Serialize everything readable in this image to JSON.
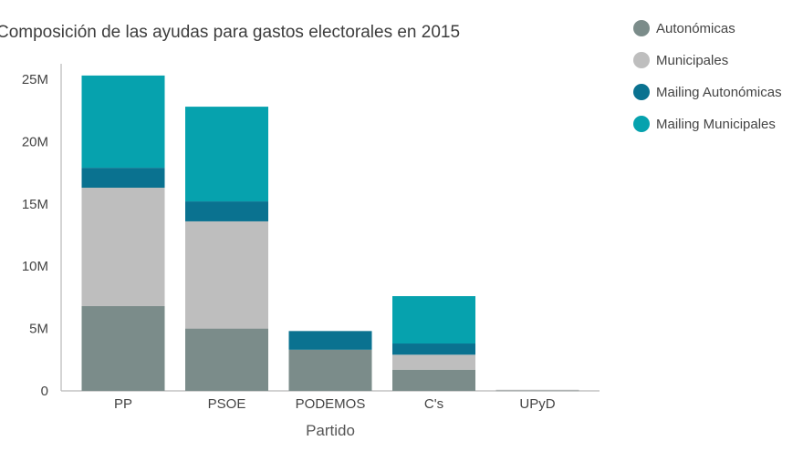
{
  "chart_data": {
    "type": "bar",
    "stacked": true,
    "title": "Composición de las ayudas para gastos electorales en 2015",
    "xlabel": "Partido",
    "ylabel": "",
    "categories": [
      "PP",
      "PSOE",
      "PODEMOS",
      "C's",
      "UPyD"
    ],
    "ylim": [
      0,
      26000000
    ],
    "yticks": [
      0,
      5000000,
      10000000,
      15000000,
      20000000,
      25000000
    ],
    "ytick_labels": [
      "0",
      "5M",
      "10M",
      "15M",
      "20M",
      "25M"
    ],
    "series": [
      {
        "name": "Autonómicas",
        "color": "#7b8c8a",
        "values": [
          6800000,
          5000000,
          3300000,
          1700000,
          60000
        ]
      },
      {
        "name": "Municipales",
        "color": "#bebebe",
        "values": [
          9500000,
          8600000,
          0,
          1200000,
          30000
        ]
      },
      {
        "name": "Mailing Autonómicas",
        "color": "#0a7290",
        "values": [
          1600000,
          1600000,
          1500000,
          900000,
          0
        ]
      },
      {
        "name": "Mailing Municipales",
        "color": "#06a2ae",
        "values": [
          7400000,
          7600000,
          0,
          3800000,
          0
        ]
      }
    ],
    "legend_position": "top-right",
    "grid": false
  }
}
